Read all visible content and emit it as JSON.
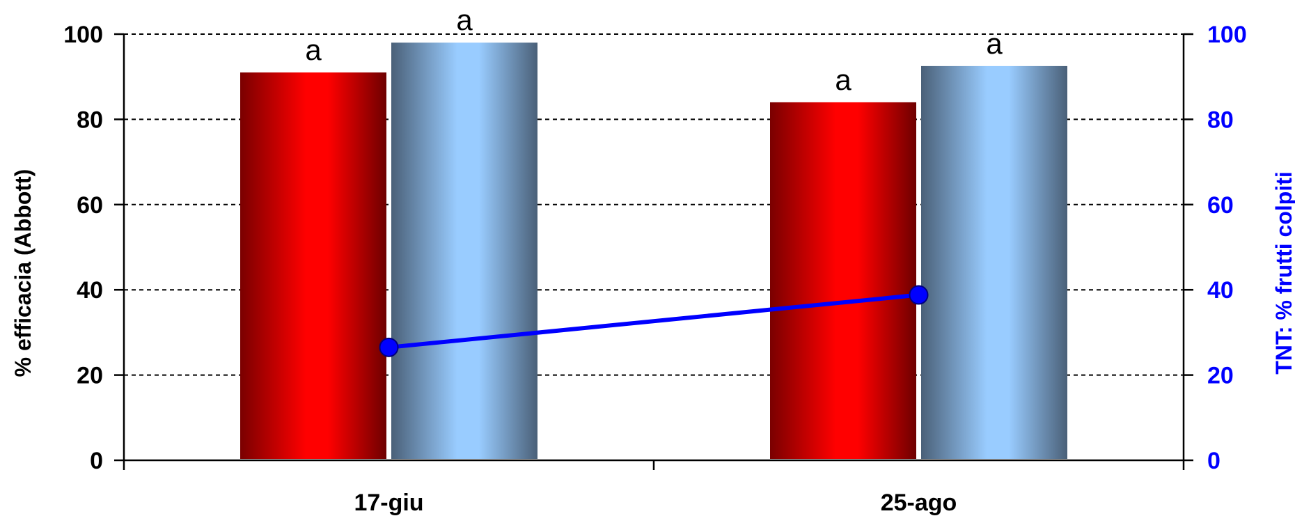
{
  "chart_data": {
    "type": "bar",
    "categories": [
      "17-giu",
      "25-ago"
    ],
    "series": [
      {
        "values": [
          91,
          84
        ],
        "letters": [
          "a",
          "a"
        ],
        "color": "#ff0000",
        "axis": "left"
      },
      {
        "values": [
          98,
          92.5
        ],
        "letters": [
          "a",
          "a"
        ],
        "color": "#99ccff",
        "axis": "left"
      },
      {
        "type": "line",
        "values": [
          26.5,
          38.8
        ],
        "color": "#0000ff",
        "axis": "right"
      }
    ],
    "ylabel": "% efficacia (Abbott)",
    "y2label": "TNT: % frutti colpiti",
    "ylim": [
      0,
      100
    ],
    "y2lim": [
      0,
      100
    ],
    "yticks": [
      "0",
      "20",
      "40",
      "60",
      "80",
      "100"
    ],
    "y2ticks": [
      "0",
      "20",
      "40",
      "60",
      "80",
      "100"
    ],
    "grid": true,
    "legend": "none",
    "colors": {
      "axis": "#000000",
      "right_axis": "#0000ff",
      "grid": "#000000"
    }
  }
}
